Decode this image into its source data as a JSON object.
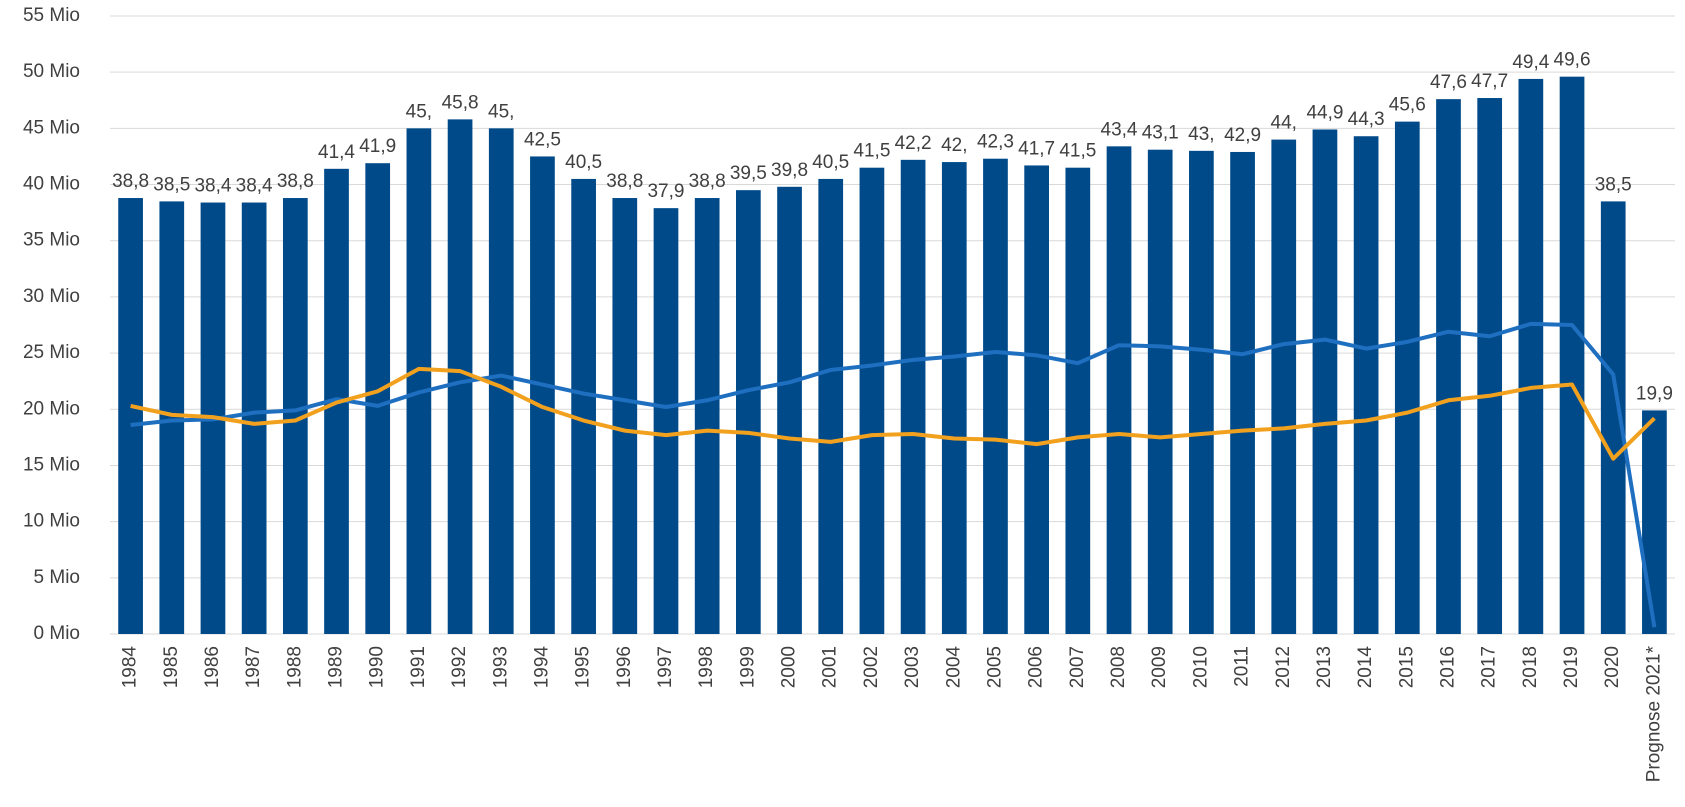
{
  "chart_data": {
    "type": "bar",
    "categories": [
      "1984",
      "1985",
      "1986",
      "1987",
      "1988",
      "1989",
      "1990",
      "1991",
      "1992",
      "1993",
      "1994",
      "1995",
      "1996",
      "1997",
      "1998",
      "1999",
      "2000",
      "2001",
      "2002",
      "2003",
      "2004",
      "2005",
      "2006",
      "2007",
      "2008",
      "2009",
      "2010",
      "2011",
      "2012",
      "2013",
      "2014",
      "2015",
      "2016",
      "2017",
      "2018",
      "2019",
      "2020",
      "Prognose 2021*"
    ],
    "values": [
      38.8,
      38.5,
      38.4,
      38.4,
      38.8,
      41.4,
      41.9,
      45,
      45.8,
      45,
      42.5,
      40.5,
      38.8,
      37.9,
      38.8,
      39.5,
      39.8,
      40.5,
      41.5,
      42.2,
      42,
      42.3,
      41.7,
      41.5,
      43.4,
      43.1,
      43,
      42.9,
      44,
      44.9,
      44.3,
      45.6,
      47.6,
      47.7,
      49.4,
      49.6,
      38.5,
      19.9
    ],
    "value_labels": [
      "38,8",
      "38,5",
      "38,4",
      "38,4",
      "38,8",
      "41,4",
      "41,9",
      "45,",
      "45,8",
      "45,",
      "42,5",
      "40,5",
      "38,8",
      "37,9",
      "38,8",
      "39,5",
      "39,8",
      "40,5",
      "41,5",
      "42,2",
      "42,",
      "42,3",
      "41,7",
      "41,5",
      "43,4",
      "43,1",
      "43,",
      "42,9",
      "44,",
      "44,9",
      "44,3",
      "45,6",
      "47,6",
      "47,7",
      "49,4",
      "49,6",
      "38,5",
      "19,9"
    ],
    "color": "#004a8a",
    "lines": [
      {
        "color": "#1f6fc0",
        "values": [
          18.6,
          19.0,
          19.1,
          19.7,
          19.9,
          20.9,
          20.3,
          21.5,
          22.4,
          23.0,
          22.2,
          21.4,
          20.8,
          20.2,
          20.8,
          21.7,
          22.4,
          23.5,
          23.9,
          24.4,
          24.7,
          25.1,
          24.8,
          24.1,
          25.7,
          25.6,
          25.3,
          24.9,
          25.8,
          26.2,
          25.4,
          26.0,
          26.9,
          26.5,
          27.6,
          27.5,
          23.1,
          0.6
        ]
      },
      {
        "color": "#f2a11f",
        "values": [
          20.3,
          19.5,
          19.3,
          18.7,
          19.0,
          20.6,
          21.6,
          23.6,
          23.4,
          22.0,
          20.2,
          19.0,
          18.1,
          17.7,
          18.1,
          17.9,
          17.4,
          17.1,
          17.7,
          17.8,
          17.4,
          17.3,
          16.9,
          17.5,
          17.8,
          17.5,
          17.8,
          18.1,
          18.3,
          18.7,
          19.0,
          19.7,
          20.8,
          21.2,
          21.9,
          22.2,
          15.6,
          19.2
        ]
      }
    ],
    "ylim": [
      0,
      55
    ],
    "yticks": [
      {
        "value": 0,
        "label": "0 Mio"
      },
      {
        "value": 5,
        "label": "5 Mio"
      },
      {
        "value": 10,
        "label": "10 Mio"
      },
      {
        "value": 15,
        "label": "15 Mio"
      },
      {
        "value": 20,
        "label": "20 Mio"
      },
      {
        "value": 25,
        "label": "25 Mio"
      },
      {
        "value": 30,
        "label": "30 Mio"
      },
      {
        "value": 35,
        "label": "35 Mio"
      },
      {
        "value": 40,
        "label": "40 Mio"
      },
      {
        "value": 45,
        "label": "45 Mio"
      },
      {
        "value": 50,
        "label": "50 Mio"
      },
      {
        "value": 55,
        "label": "55 Mio"
      }
    ],
    "grid": true
  }
}
